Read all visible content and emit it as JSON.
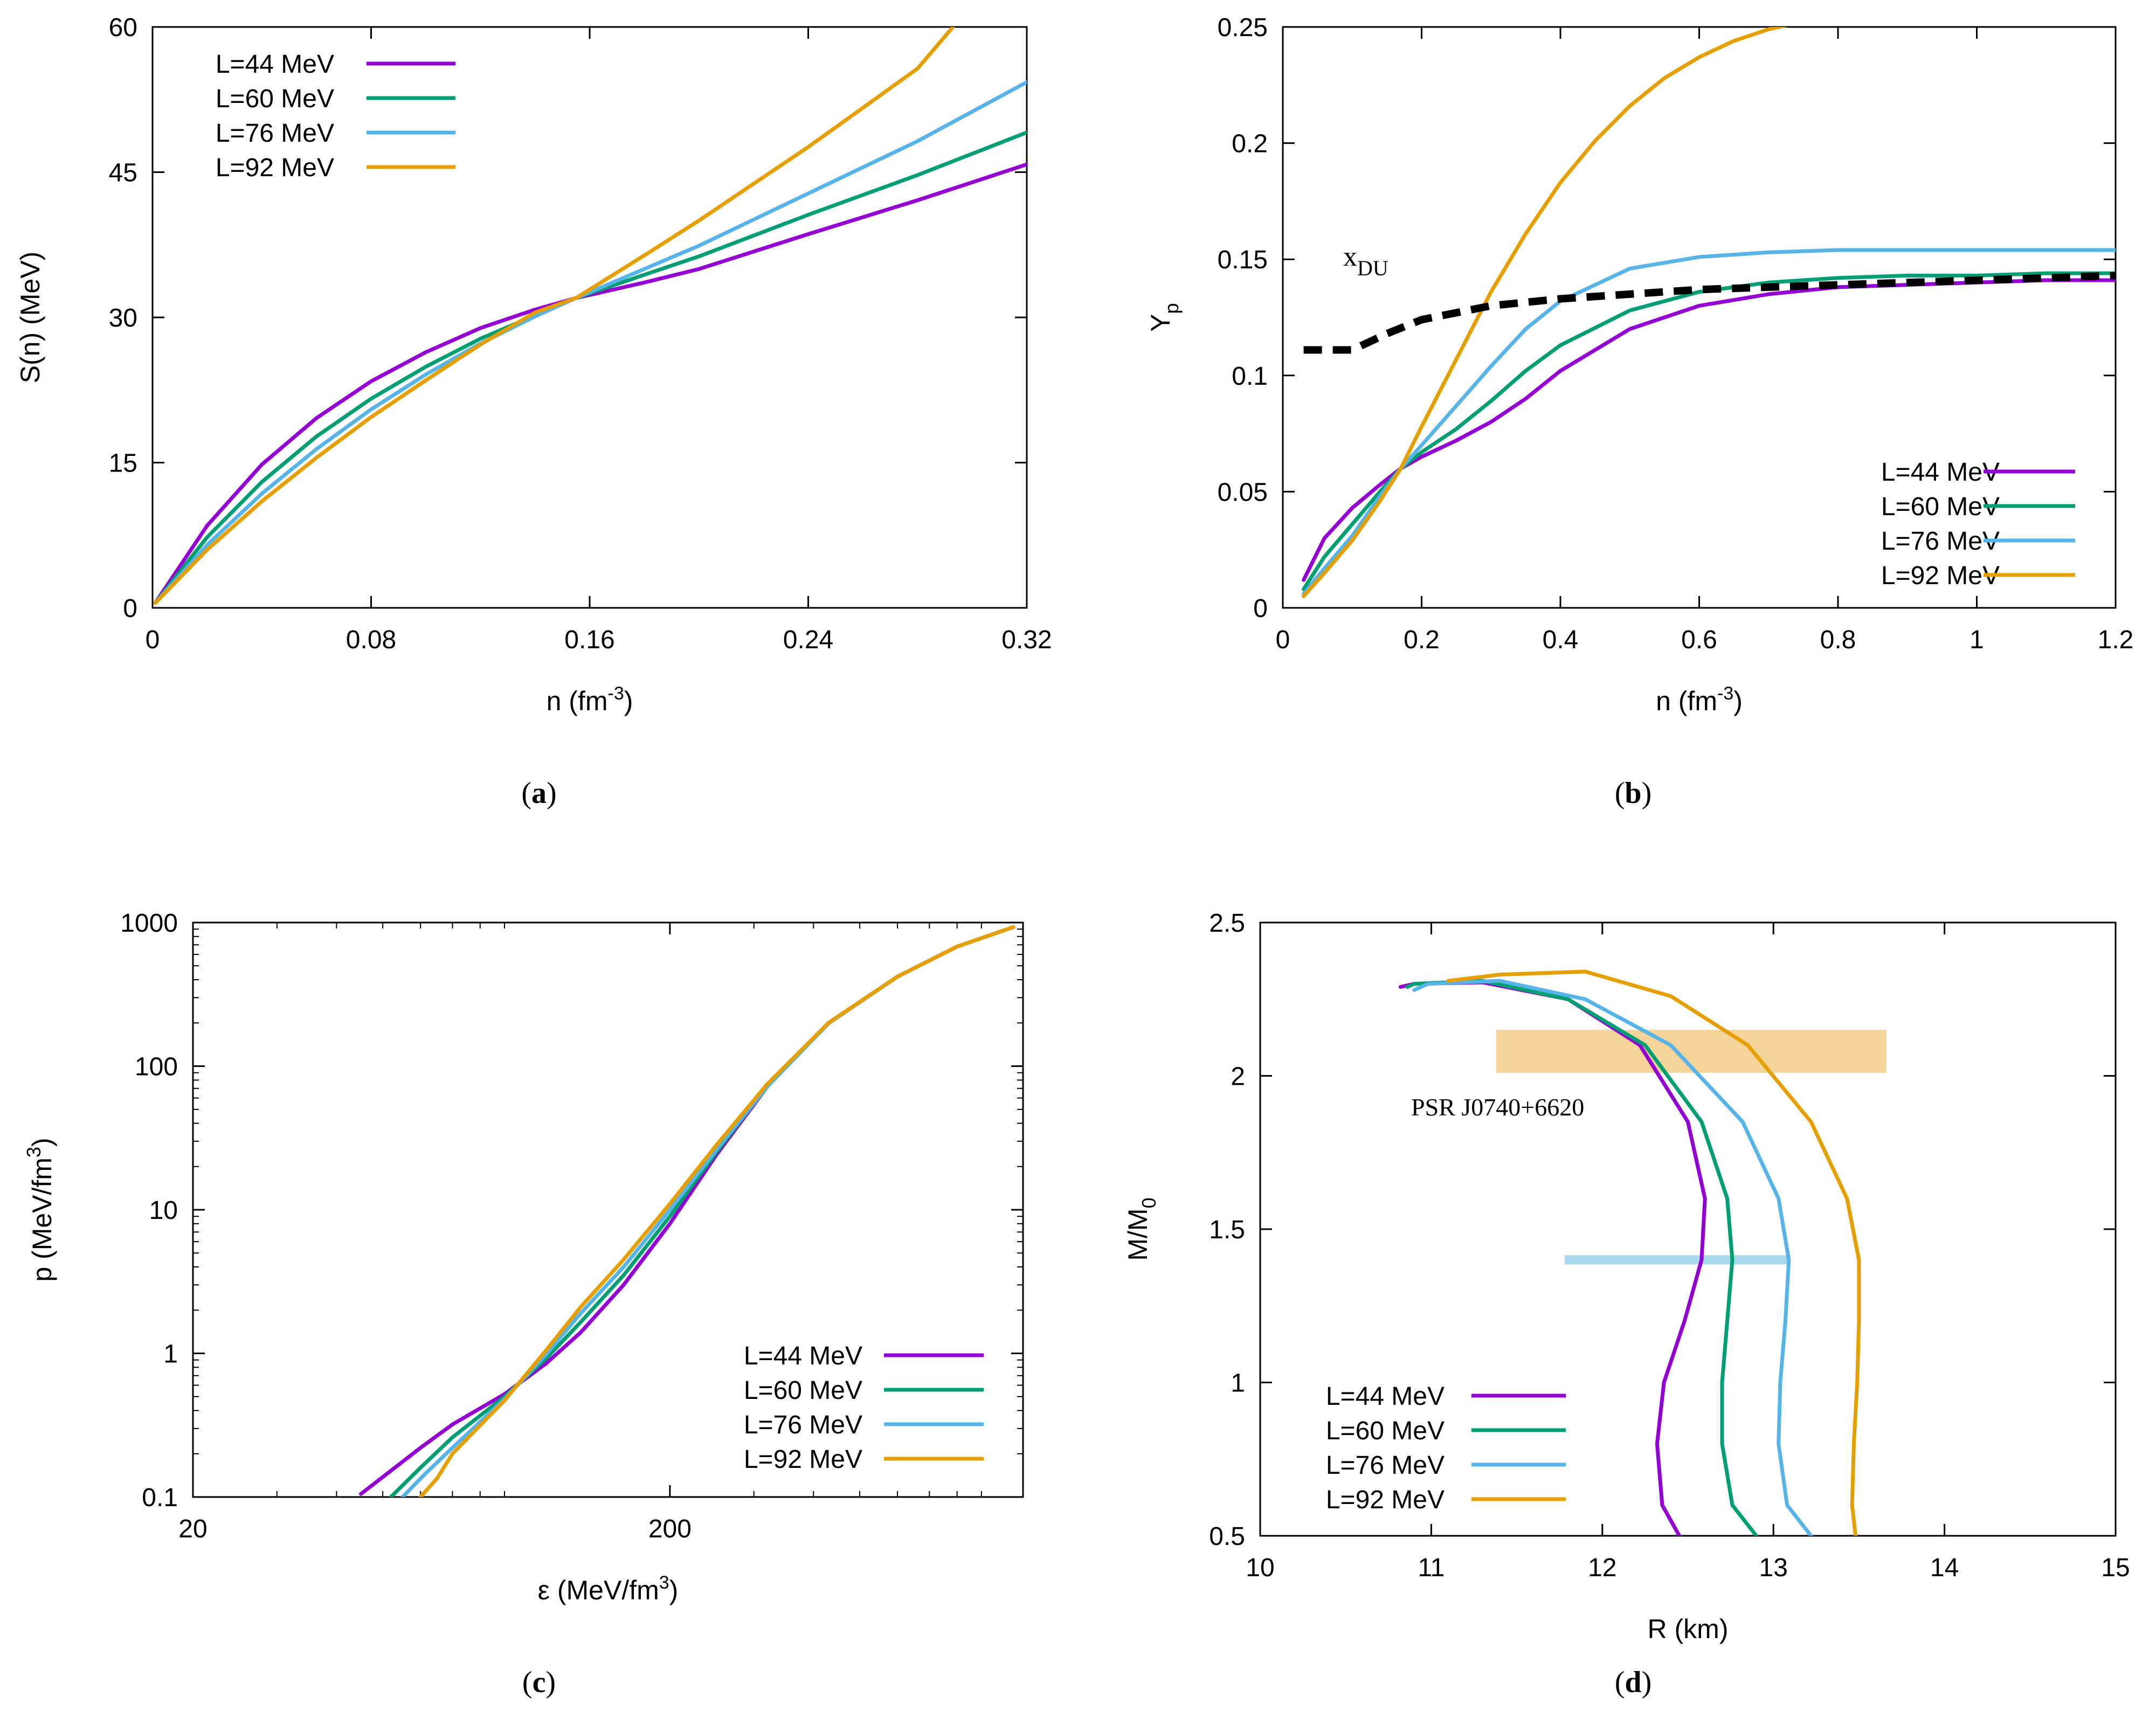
{
  "panels": [
    {
      "id": "a",
      "caption_letter": "a",
      "axes": {
        "xlim": [
          0,
          0.32
        ],
        "ylim": [
          0,
          60
        ],
        "xscale": "linear",
        "yscale": "linear",
        "xticks": [
          0,
          0.08,
          0.16,
          0.24,
          0.32
        ],
        "xtick_labels": [
          "0",
          "0.08",
          "0.16",
          "0.24",
          "0.32"
        ],
        "yticks": [
          0,
          15,
          30,
          45,
          60
        ],
        "ytick_labels": [
          "0",
          "15",
          "30",
          "45",
          "60"
        ],
        "xlabel": {
          "base": "n  (fm",
          "sup": "-3",
          "tail": ")"
        },
        "ylabel": {
          "base": "S(n)  (MeV)",
          "sub": ""
        }
      },
      "legend": {
        "position": "top-left"
      }
    },
    {
      "id": "b",
      "caption_letter": "b",
      "axes": {
        "xlim": [
          0,
          1.2
        ],
        "ylim": [
          0,
          0.25
        ],
        "xscale": "linear",
        "yscale": "linear",
        "xticks": [
          0,
          0.2,
          0.4,
          0.6,
          0.8,
          1.0,
          1.2
        ],
        "xtick_labels": [
          "0",
          "0.2",
          "0.4",
          "0.6",
          "0.8",
          "1",
          "1.2"
        ],
        "yticks": [
          0,
          0.05,
          0.1,
          0.15,
          0.2,
          0.25
        ],
        "ytick_labels": [
          "0",
          "0.05",
          "0.1",
          "0.15",
          "0.2",
          "0.25"
        ],
        "xlabel": {
          "base": "n  (fm",
          "sup": "-3",
          "tail": ")"
        },
        "ylabel": {
          "base": "Y",
          "sub": "p"
        }
      },
      "legend": {
        "position": "bottom-right"
      },
      "annotation": {
        "base": "x",
        "sub": "DU"
      }
    },
    {
      "id": "c",
      "caption_letter": "c",
      "axes": {
        "xlim": [
          20,
          1100
        ],
        "ylim": [
          0.1,
          1000
        ],
        "xscale": "log",
        "yscale": "log",
        "xticks": [
          20,
          200
        ],
        "xtick_labels": [
          "20",
          "200"
        ],
        "yticks": [
          0.1,
          1,
          10,
          100,
          1000
        ],
        "ytick_labels": [
          "0.1",
          "1",
          "10",
          "100",
          "1000"
        ],
        "xlabel": {
          "base": "ε  (MeV/fm",
          "sup": "3",
          "tail": ")"
        },
        "ylabel": {
          "base": "p  (MeV/fm",
          "sup": "3",
          "tail": ")"
        }
      },
      "legend": {
        "position": "bottom-right"
      }
    },
    {
      "id": "d",
      "caption_letter": "d",
      "axes": {
        "xlim": [
          10,
          15
        ],
        "ylim": [
          0.5,
          2.5
        ],
        "xscale": "linear",
        "yscale": "linear",
        "xticks": [
          10,
          11,
          12,
          13,
          14,
          15
        ],
        "xtick_labels": [
          "10",
          "11",
          "12",
          "13",
          "14",
          "15"
        ],
        "yticks": [
          0.5,
          1,
          1.5,
          2,
          2.5
        ],
        "ytick_labels": [
          "0.5",
          "1",
          "1.5",
          "2",
          "2.5"
        ],
        "xlabel": {
          "base": "R  (km)",
          "sup": "",
          "tail": ""
        },
        "ylabel": {
          "base": "M/M",
          "sub": "0"
        }
      },
      "legend": {
        "position": "bottom-left"
      },
      "annotation": "PSR J0740+6620",
      "bands": [
        {
          "x": [
            11.38,
            13.66
          ],
          "y": [
            2.01,
            2.15
          ],
          "color": "#f5d49a"
        },
        {
          "x": [
            11.78,
            13.08
          ],
          "y": [
            1.385,
            1.415
          ],
          "color": "#a8d8ec"
        }
      ]
    }
  ],
  "series_names": [
    "L=44 MeV",
    "L=60 MeV",
    "L=76 MeV",
    "L=92 MeV"
  ],
  "series_colors": [
    "#9400d3",
    "#009e73",
    "#56b4e9",
    "#e69f00"
  ],
  "chart_data": [
    {
      "panel": "a",
      "type": "line",
      "series": [
        {
          "name": "L=44 MeV",
          "color": "#9400d3",
          "x": [
            0.001,
            0.02,
            0.04,
            0.06,
            0.08,
            0.1,
            0.12,
            0.14,
            0.155,
            0.18,
            0.2,
            0.24,
            0.28,
            0.32
          ],
          "y": [
            0.5,
            8.5,
            14.8,
            19.6,
            23.4,
            26.4,
            28.9,
            30.8,
            32.0,
            33.6,
            35.0,
            38.6,
            42.1,
            45.8
          ]
        },
        {
          "name": "L=60 MeV",
          "color": "#009e73",
          "x": [
            0.001,
            0.02,
            0.04,
            0.06,
            0.08,
            0.1,
            0.12,
            0.14,
            0.155,
            0.18,
            0.2,
            0.24,
            0.28,
            0.32
          ],
          "y": [
            0.5,
            7.3,
            13.0,
            17.7,
            21.6,
            24.9,
            27.8,
            30.2,
            32.0,
            34.4,
            36.3,
            40.6,
            44.7,
            49.1
          ]
        },
        {
          "name": "L=76 MeV",
          "color": "#56b4e9",
          "x": [
            0.001,
            0.02,
            0.04,
            0.06,
            0.08,
            0.1,
            0.12,
            0.14,
            0.155,
            0.18,
            0.2,
            0.24,
            0.28,
            0.32
          ],
          "y": [
            0.5,
            6.5,
            11.8,
            16.4,
            20.5,
            24.1,
            27.3,
            30.1,
            32.0,
            35.0,
            37.4,
            42.8,
            48.2,
            54.3
          ]
        },
        {
          "name": "L=92 MeV",
          "color": "#e69f00",
          "x": [
            0.001,
            0.02,
            0.04,
            0.06,
            0.08,
            0.1,
            0.12,
            0.14,
            0.155,
            0.18,
            0.2,
            0.24,
            0.28,
            0.293
          ],
          "y": [
            0.5,
            6.0,
            11.0,
            15.5,
            19.7,
            23.5,
            27.2,
            30.5,
            32.0,
            36.4,
            40.0,
            47.6,
            55.7,
            60.0
          ]
        }
      ]
    },
    {
      "panel": "b",
      "type": "line",
      "series": [
        {
          "name": "L=44 MeV",
          "color": "#9400d3",
          "x": [
            0.03,
            0.06,
            0.1,
            0.14,
            0.17,
            0.2,
            0.25,
            0.3,
            0.35,
            0.4,
            0.5,
            0.6,
            0.7,
            0.8,
            0.9,
            1.0,
            1.1,
            1.2
          ],
          "y": [
            0.012,
            0.03,
            0.043,
            0.053,
            0.06,
            0.065,
            0.072,
            0.08,
            0.09,
            0.102,
            0.12,
            0.13,
            0.135,
            0.138,
            0.139,
            0.14,
            0.141,
            0.141
          ]
        },
        {
          "name": "L=60 MeV",
          "color": "#009e73",
          "x": [
            0.03,
            0.06,
            0.1,
            0.14,
            0.17,
            0.2,
            0.25,
            0.3,
            0.35,
            0.4,
            0.5,
            0.6,
            0.7,
            0.8,
            0.9,
            1.0,
            1.1,
            1.2
          ],
          "y": [
            0.008,
            0.022,
            0.036,
            0.05,
            0.06,
            0.067,
            0.077,
            0.089,
            0.102,
            0.113,
            0.128,
            0.136,
            0.14,
            0.142,
            0.143,
            0.143,
            0.144,
            0.144
          ]
        },
        {
          "name": "L=76 MeV",
          "color": "#56b4e9",
          "x": [
            0.03,
            0.06,
            0.1,
            0.14,
            0.17,
            0.2,
            0.25,
            0.3,
            0.35,
            0.4,
            0.5,
            0.6,
            0.7,
            0.8,
            0.9,
            1.0,
            1.1,
            1.2
          ],
          "y": [
            0.006,
            0.017,
            0.031,
            0.048,
            0.06,
            0.07,
            0.087,
            0.104,
            0.12,
            0.132,
            0.146,
            0.151,
            0.153,
            0.154,
            0.154,
            0.154,
            0.154,
            0.154
          ]
        },
        {
          "name": "L=92 MeV",
          "color": "#e69f00",
          "x": [
            0.03,
            0.06,
            0.1,
            0.14,
            0.17,
            0.2,
            0.25,
            0.3,
            0.35,
            0.4,
            0.45,
            0.5,
            0.55,
            0.6,
            0.65,
            0.7,
            0.73
          ],
          "y": [
            0.005,
            0.015,
            0.029,
            0.046,
            0.06,
            0.078,
            0.107,
            0.136,
            0.161,
            0.183,
            0.201,
            0.216,
            0.228,
            0.237,
            0.244,
            0.249,
            0.251
          ]
        },
        {
          "name": "x_DU",
          "color": "#000000",
          "dashed": true,
          "x": [
            0.03,
            0.1,
            0.15,
            0.2,
            0.3,
            0.4,
            0.5,
            0.6,
            0.7,
            0.8,
            0.9,
            1.0,
            1.1,
            1.2
          ],
          "y": [
            0.111,
            0.111,
            0.118,
            0.124,
            0.13,
            0.133,
            0.135,
            0.137,
            0.138,
            0.139,
            0.14,
            0.141,
            0.142,
            0.143
          ]
        }
      ]
    },
    {
      "panel": "c",
      "type": "line",
      "series": [
        {
          "name": "L=44 MeV",
          "color": "#9400d3",
          "x": [
            45,
            60,
            70,
            90,
            110,
            130,
            160,
            200,
            250,
            320,
            430,
            600,
            800,
            1050
          ],
          "y": [
            0.105,
            0.22,
            0.32,
            0.52,
            0.85,
            1.4,
            3.0,
            8.0,
            24,
            72,
            200,
            420,
            680,
            930
          ]
        },
        {
          "name": "L=60 MeV",
          "color": "#009e73",
          "x": [
            52,
            60,
            70,
            90,
            110,
            130,
            160,
            200,
            250,
            320,
            430,
            600,
            800,
            1050
          ],
          "y": [
            0.1,
            0.16,
            0.26,
            0.5,
            0.92,
            1.65,
            3.5,
            9.0,
            25,
            73,
            200,
            420,
            680,
            930
          ]
        },
        {
          "name": "L=76 MeV",
          "color": "#56b4e9",
          "x": [
            55,
            62,
            70,
            90,
            110,
            130,
            160,
            200,
            250,
            320,
            430,
            600,
            800,
            1050
          ],
          "y": [
            0.1,
            0.15,
            0.22,
            0.48,
            0.98,
            1.9,
            4.0,
            10,
            26,
            72,
            198,
            420,
            680,
            930
          ]
        },
        {
          "name": "L=92 MeV",
          "color": "#e69f00",
          "x": [
            60,
            65,
            70,
            90,
            110,
            130,
            160,
            200,
            250,
            320,
            430,
            600,
            800,
            1050
          ],
          "y": [
            0.1,
            0.135,
            0.2,
            0.47,
            1.05,
            2.1,
            4.5,
            11,
            28,
            75,
            200,
            420,
            680,
            930
          ]
        }
      ]
    },
    {
      "panel": "d",
      "type": "line",
      "series": [
        {
          "name": "L=44 MeV",
          "color": "#9400d3",
          "x": [
            12.45,
            12.35,
            12.32,
            12.36,
            12.48,
            12.58,
            12.6,
            12.5,
            12.22,
            11.8,
            11.3,
            10.9,
            10.82
          ],
          "y": [
            0.5,
            0.6,
            0.8,
            1.0,
            1.2,
            1.4,
            1.6,
            1.85,
            2.1,
            2.25,
            2.305,
            2.3,
            2.29
          ]
        },
        {
          "name": "L=60 MeV",
          "color": "#009e73",
          "x": [
            12.9,
            12.76,
            12.7,
            12.7,
            12.73,
            12.76,
            12.73,
            12.58,
            12.25,
            11.8,
            11.3,
            10.9,
            10.86
          ],
          "y": [
            0.5,
            0.6,
            0.8,
            1.0,
            1.2,
            1.4,
            1.6,
            1.85,
            2.1,
            2.25,
            2.31,
            2.3,
            2.29
          ]
        },
        {
          "name": "L=76 MeV",
          "color": "#56b4e9",
          "x": [
            13.22,
            13.08,
            13.03,
            13.04,
            13.07,
            13.09,
            13.03,
            12.82,
            12.4,
            11.9,
            11.4,
            10.98,
            10.9
          ],
          "y": [
            0.5,
            0.6,
            0.8,
            1.0,
            1.2,
            1.4,
            1.6,
            1.85,
            2.1,
            2.25,
            2.31,
            2.3,
            2.28
          ]
        },
        {
          "name": "L=92 MeV",
          "color": "#e69f00",
          "x": [
            13.48,
            13.46,
            13.47,
            13.49,
            13.5,
            13.5,
            13.43,
            13.22,
            12.85,
            12.4,
            11.9,
            11.4,
            11.1
          ],
          "y": [
            0.5,
            0.6,
            0.8,
            1.0,
            1.2,
            1.4,
            1.6,
            1.85,
            2.1,
            2.26,
            2.34,
            2.33,
            2.31
          ]
        }
      ]
    }
  ]
}
